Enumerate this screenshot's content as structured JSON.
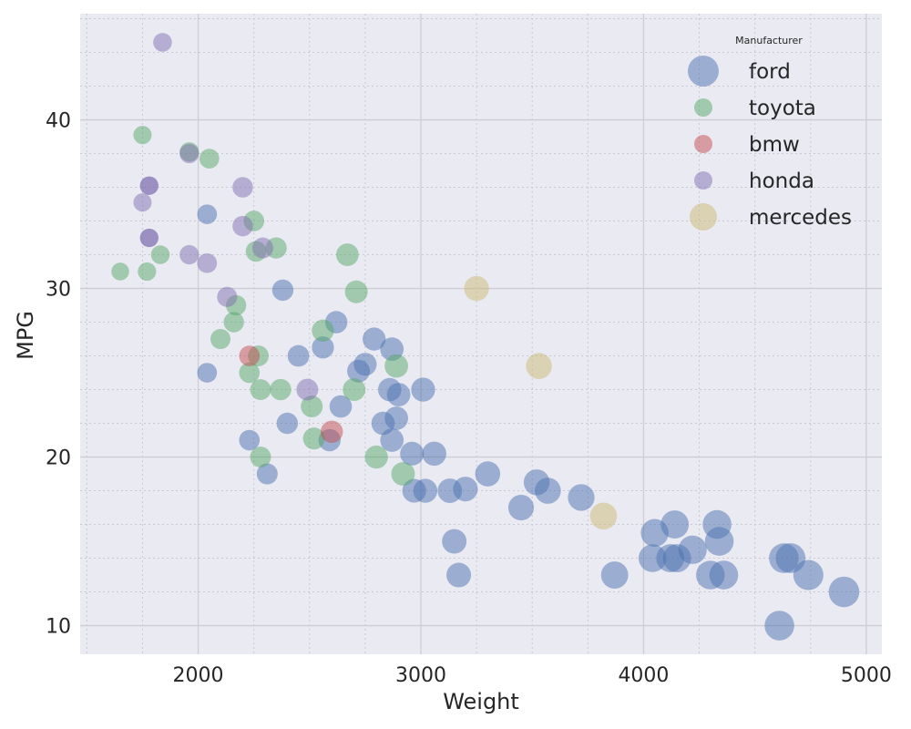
{
  "chart_data": {
    "type": "scatter",
    "title": "",
    "xlabel": "Weight",
    "ylabel": "MPG",
    "xlim": [
      1470,
      5070
    ],
    "ylim": [
      8.3,
      46.3
    ],
    "xticks": [
      2000,
      3000,
      4000,
      5000
    ],
    "yticks": [
      10,
      20,
      30,
      40
    ],
    "x_minor_step": 250,
    "y_minor_step": 2,
    "grid": true,
    "legend": {
      "title": "Manufacturer",
      "placement": "top-right",
      "entries": [
        "ford",
        "toyota",
        "bmw",
        "honda",
        "mercedes"
      ]
    },
    "size_encoding": "marker area grows with Weight",
    "alpha": 0.5,
    "series": [
      {
        "name": "ford",
        "color": "#4c72b0",
        "points": [
          [
            2040,
            34.4
          ],
          [
            2380,
            29.9
          ],
          [
            2040,
            25.0
          ],
          [
            2230,
            21.0
          ],
          [
            2310,
            19.0
          ],
          [
            2400,
            22.0
          ],
          [
            2450,
            26.0
          ],
          [
            2560,
            26.5
          ],
          [
            2590,
            21.0
          ],
          [
            2620,
            28.0
          ],
          [
            2640,
            23.0
          ],
          [
            2720,
            25.1
          ],
          [
            2750,
            25.5
          ],
          [
            2790,
            27.0
          ],
          [
            2830,
            22.0
          ],
          [
            2860,
            24.0
          ],
          [
            2870,
            26.4
          ],
          [
            2870,
            21.0
          ],
          [
            2890,
            22.3
          ],
          [
            2900,
            23.7
          ],
          [
            2960,
            20.2
          ],
          [
            2970,
            18.0
          ],
          [
            3010,
            24.0
          ],
          [
            3020,
            18.0
          ],
          [
            3060,
            20.2
          ],
          [
            3130,
            18.0
          ],
          [
            3150,
            15.0
          ],
          [
            3170,
            13.0
          ],
          [
            3200,
            18.1
          ],
          [
            3300,
            19.0
          ],
          [
            3450,
            17.0
          ],
          [
            3520,
            18.5
          ],
          [
            3570,
            18.0
          ],
          [
            3720,
            17.6
          ],
          [
            3870,
            13.0
          ],
          [
            4040,
            14.0
          ],
          [
            4050,
            15.5
          ],
          [
            4120,
            14.0
          ],
          [
            4140,
            16.0
          ],
          [
            4150,
            14.0
          ],
          [
            4220,
            14.5
          ],
          [
            4300,
            13.0
          ],
          [
            4330,
            16.0
          ],
          [
            4340,
            15.0
          ],
          [
            4360,
            13.0
          ],
          [
            4610,
            10.0
          ],
          [
            4630,
            14.0
          ],
          [
            4660,
            14.0
          ],
          [
            4740,
            13.0
          ],
          [
            4900,
            12.0
          ]
        ]
      },
      {
        "name": "toyota",
        "color": "#55a868",
        "points": [
          [
            1650,
            31.0
          ],
          [
            1750,
            39.1
          ],
          [
            1770,
            31.0
          ],
          [
            1830,
            32.0
          ],
          [
            1960,
            38.1
          ],
          [
            2050,
            37.7
          ],
          [
            2100,
            27.0
          ],
          [
            2160,
            28.0
          ],
          [
            2170,
            29.0
          ],
          [
            2230,
            25.0
          ],
          [
            2250,
            34.0
          ],
          [
            2260,
            32.2
          ],
          [
            2270,
            26.0
          ],
          [
            2280,
            24.0
          ],
          [
            2280,
            20.0
          ],
          [
            2350,
            32.4
          ],
          [
            2370,
            24.0
          ],
          [
            2510,
            23.0
          ],
          [
            2520,
            21.1
          ],
          [
            2560,
            27.5
          ],
          [
            2670,
            32.0
          ],
          [
            2700,
            24.0
          ],
          [
            2710,
            29.8
          ],
          [
            2800,
            20.0
          ],
          [
            2890,
            25.4
          ],
          [
            2920,
            19.0
          ]
        ]
      },
      {
        "name": "bmw",
        "color": "#c44e52",
        "points": [
          [
            2230,
            26.0
          ],
          [
            2600,
            21.5
          ]
        ]
      },
      {
        "name": "honda",
        "color": "#8172b2",
        "points": [
          [
            1750,
            35.1
          ],
          [
            1780,
            36.1
          ],
          [
            1780,
            33.0
          ],
          [
            1780,
            36.1
          ],
          [
            1780,
            33.0
          ],
          [
            1840,
            44.6
          ],
          [
            1960,
            38.0
          ],
          [
            1960,
            32.0
          ],
          [
            2040,
            31.5
          ],
          [
            2130,
            29.5
          ],
          [
            2200,
            36.0
          ],
          [
            2200,
            33.7
          ],
          [
            2290,
            32.4
          ],
          [
            2490,
            24.0
          ]
        ]
      },
      {
        "name": "mercedes",
        "color": "#ccb974",
        "points": [
          [
            3250,
            30.0
          ],
          [
            3530,
            25.4
          ],
          [
            3820,
            16.5
          ]
        ]
      }
    ]
  }
}
